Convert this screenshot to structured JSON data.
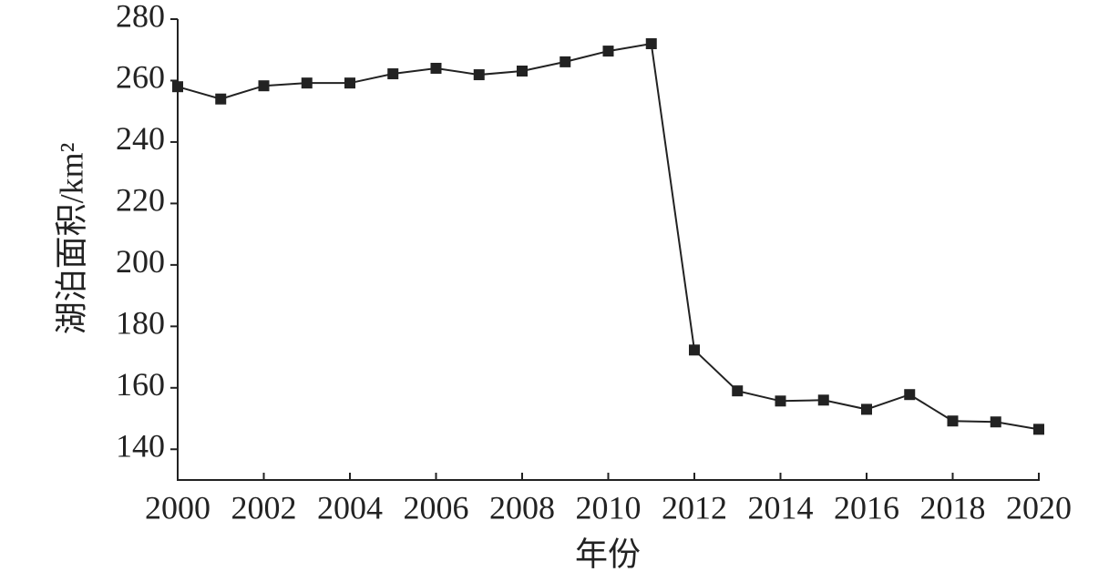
{
  "chart_data": {
    "type": "line",
    "x_label": "年份",
    "y_label": "湖泊面积/km²",
    "x": [
      2000,
      2001,
      2002,
      2003,
      2004,
      2005,
      2006,
      2007,
      2008,
      2009,
      2010,
      2011,
      2012,
      2013,
      2014,
      2015,
      2016,
      2017,
      2018,
      2019,
      2020
    ],
    "series": [
      {
        "color": "#222222",
        "values": [
          258.0,
          254.0,
          258.3,
          259.2,
          259.2,
          262.2,
          264.0,
          261.9,
          263.1,
          266.1,
          269.6,
          272.0,
          172.3,
          159.0,
          155.7,
          156.0,
          153.0,
          157.8,
          149.2,
          148.9,
          146.5
        ]
      }
    ],
    "xlim": [
      2000,
      2020
    ],
    "xticks": [
      2000,
      2002,
      2004,
      2006,
      2008,
      2010,
      2012,
      2014,
      2016,
      2018,
      2020
    ],
    "ylim": [
      130,
      280
    ],
    "yticks": [
      140,
      160,
      180,
      200,
      220,
      240,
      260,
      280
    ]
  }
}
